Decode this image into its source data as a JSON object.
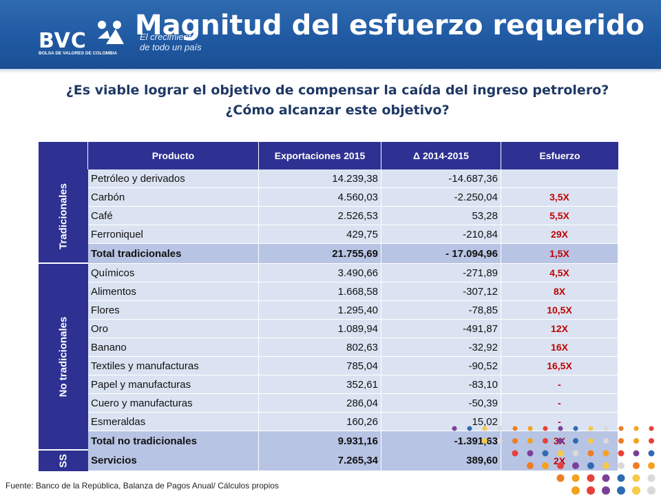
{
  "header": {
    "logo_wordmark": "BVC",
    "logo_subtitle": "BOLSA DE VALORES DE COLOMBIA",
    "tagline_line1": "El crecimiento",
    "tagline_line2": "de todo un país",
    "title": "Magnitud del esfuerzo requerido"
  },
  "questions": {
    "line1": "¿Es viable lograr el objetivo de compensar la caída del ingreso petrolero?",
    "line2": "¿Cómo alcanzar este objetivo?"
  },
  "table": {
    "headers": [
      "Producto",
      "Exportaciones  2015",
      "Δ 2014-2015",
      "Esfuerzo"
    ],
    "groups": [
      {
        "label": "Tradicionales"
      },
      {
        "label": "No tradicionales"
      },
      {
        "label": "SS"
      }
    ],
    "rows": [
      {
        "producto": "Petróleo y derivados",
        "exportaciones": "14.239,38",
        "delta": "-14.687,36",
        "esfuerzo": ""
      },
      {
        "producto": "Carbón",
        "exportaciones": "4.560,03",
        "delta": "-2.250,04",
        "esfuerzo": "3,5X"
      },
      {
        "producto": "Café",
        "exportaciones": "2.526,53",
        "delta": "53,28",
        "esfuerzo": "5,5X"
      },
      {
        "producto": "Ferroniquel",
        "exportaciones": "429,75",
        "delta": "-210,84",
        "esfuerzo": "29X"
      },
      {
        "producto": "Total tradicionales",
        "exportaciones": "21.755,69",
        "delta": "- 17.094,96",
        "esfuerzo": "1,5X"
      },
      {
        "producto": "Químicos",
        "exportaciones": "3.490,66",
        "delta": "-271,89",
        "esfuerzo": "4,5X"
      },
      {
        "producto": "Alimentos",
        "exportaciones": "1.668,58",
        "delta": "-307,12",
        "esfuerzo": "8X"
      },
      {
        "producto": "Flores",
        "exportaciones": "1.295,40",
        "delta": "-78,85",
        "esfuerzo": "10,5X"
      },
      {
        "producto": "Oro",
        "exportaciones": "1.089,94",
        "delta": "-491,87",
        "esfuerzo": "12X"
      },
      {
        "producto": "Banano",
        "exportaciones": "802,63",
        "delta": "-32,92",
        "esfuerzo": "16X"
      },
      {
        "producto": "Textiles y manufacturas",
        "exportaciones": "785,04",
        "delta": "-90,52",
        "esfuerzo": "16,5X"
      },
      {
        "producto": "Papel y manufacturas",
        "exportaciones": "352,61",
        "delta": "-83,10",
        "esfuerzo": "-"
      },
      {
        "producto": "Cuero y manufacturas",
        "exportaciones": "286,04",
        "delta": "-50,39",
        "esfuerzo": "-"
      },
      {
        "producto": "Esmeraldas",
        "exportaciones": "160,26",
        "delta": "15,02",
        "esfuerzo": "-"
      },
      {
        "producto": "Total no tradicionales",
        "exportaciones": "9.931,16",
        "delta": "-1.391,63",
        "esfuerzo": "3X"
      },
      {
        "producto": "Servicios",
        "exportaciones": "7.265,34",
        "delta": "389,60",
        "esfuerzo": "2X"
      }
    ]
  },
  "footer": {
    "source": "Fuente: Banco de la República, Balanza de Pagos Anual/ Cálculos propios"
  },
  "colors": {
    "header_blue": "#1f58a1",
    "table_header": "#2e3192",
    "row_light": "#dbe3f2",
    "row_total": "#b8c4e4",
    "effort_red": "#c00000"
  }
}
